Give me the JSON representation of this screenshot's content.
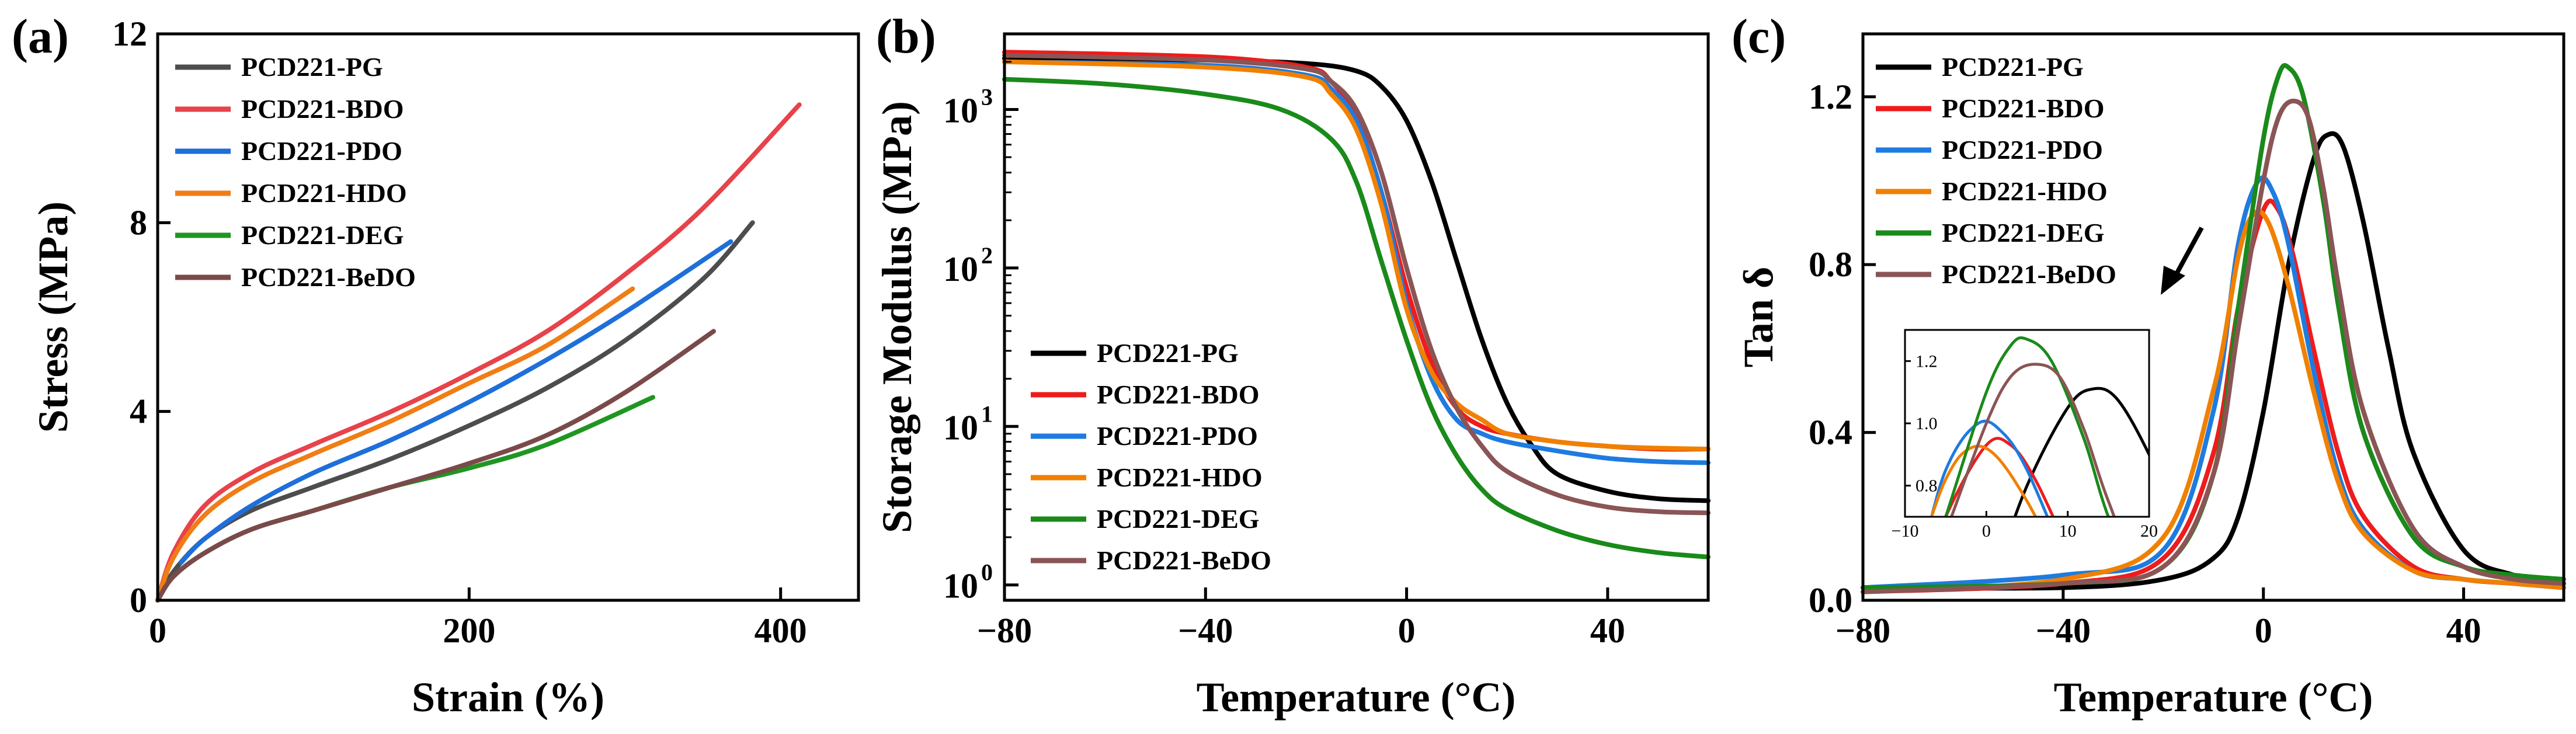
{
  "colors": {
    "PG": "#4d4d4d",
    "BDO": "#e8424a",
    "PDO": "#1e6fd9",
    "HDO": "#f07d15",
    "DEG": "#1f9622",
    "BeDO": "#7a4a4a",
    "PGc": "#000000",
    "BDOc": "#ee1c1c",
    "PDOc": "#1e7be0",
    "HDOc": "#f08000",
    "DEGc": "#1a8a1a",
    "BeDOc": "#8a5555"
  },
  "chart_data": [
    {
      "panel": "(a)",
      "type": "line",
      "xlabel": "Strain (%)",
      "ylabel": "Stress (MPa)",
      "xlim": [
        0,
        450
      ],
      "ylim": [
        0,
        12
      ],
      "xticks": [
        "0",
        "200",
        "400"
      ],
      "yticks": [
        "0",
        "4",
        "8",
        "12"
      ],
      "legend": [
        "PCD221-PG",
        "PCD221-BDO",
        "PCD221-PDO",
        "PCD221-HDO",
        "PCD221-DEG",
        "PCD221-BeDO"
      ],
      "series": [
        {
          "name": "PCD221-PG",
          "color": "#4d4d4d",
          "x": [
            0,
            10,
            30,
            60,
            100,
            150,
            200,
            250,
            300,
            350,
            382
          ],
          "y": [
            0,
            0.6,
            1.3,
            1.9,
            2.4,
            3.0,
            3.7,
            4.5,
            5.5,
            6.8,
            8.0
          ]
        },
        {
          "name": "PCD221-BDO",
          "color": "#e8424a",
          "x": [
            0,
            10,
            30,
            60,
            100,
            150,
            200,
            250,
            300,
            350,
            412
          ],
          "y": [
            0,
            1.0,
            2.0,
            2.7,
            3.3,
            4.0,
            4.8,
            5.7,
            6.9,
            8.3,
            10.5
          ]
        },
        {
          "name": "PCD221-PDO",
          "color": "#1e6fd9",
          "x": [
            15,
            30,
            60,
            100,
            150,
            200,
            250,
            300,
            368
          ],
          "y": [
            0.8,
            1.3,
            2.0,
            2.7,
            3.4,
            4.2,
            5.1,
            6.1,
            7.6
          ]
        },
        {
          "name": "PCD221-HDO",
          "color": "#f07d15",
          "x": [
            0,
            10,
            30,
            60,
            100,
            150,
            200,
            250,
            305
          ],
          "y": [
            0,
            0.9,
            1.8,
            2.5,
            3.1,
            3.8,
            4.6,
            5.4,
            6.6
          ]
        },
        {
          "name": "PCD221-DEG",
          "color": "#1f9622",
          "x": [
            0,
            10,
            30,
            60,
            100,
            150,
            200,
            250,
            318
          ],
          "y": [
            0,
            0.5,
            1.0,
            1.5,
            1.9,
            2.4,
            2.8,
            3.3,
            4.3
          ]
        },
        {
          "name": "PCD221-BeDO",
          "color": "#7a4a4a",
          "x": [
            0,
            10,
            30,
            60,
            100,
            150,
            200,
            250,
            300,
            357
          ],
          "y": [
            0,
            0.5,
            1.0,
            1.5,
            1.9,
            2.4,
            2.9,
            3.5,
            4.4,
            5.7
          ]
        }
      ]
    },
    {
      "panel": "(b)",
      "type": "line",
      "yscale": "log",
      "xlabel": "Temperature (°C)",
      "ylabel": "Storage Modulus (MPa)",
      "xlim": [
        -80,
        60
      ],
      "ylim": [
        0.8,
        3000
      ],
      "xticks": [
        "−80",
        "−40",
        "0",
        "40"
      ],
      "yticks": [
        "10",
        "10",
        "10",
        "10"
      ],
      "ytick_exponents": [
        "0",
        "1",
        "2",
        "3"
      ],
      "legend": [
        "PCD221-PG",
        "PCD221-BDO",
        "PCD221-PDO",
        "PCD221-HDO",
        "PCD221-DEG",
        "PCD221-BeDO"
      ],
      "series": [
        {
          "name": "PCD221-PG",
          "color": "#000000",
          "x": [
            -80,
            -40,
            -20,
            -10,
            -5,
            0,
            5,
            10,
            15,
            20,
            25,
            30,
            40,
            50,
            60
          ],
          "y": [
            2100,
            2050,
            1950,
            1750,
            1400,
            850,
            350,
            110,
            35,
            14,
            7.5,
            5.0,
            3.9,
            3.5,
            3.4
          ]
        },
        {
          "name": "PCD221-BDO",
          "color": "#ee1c1c",
          "x": [
            -80,
            -40,
            -20,
            -15,
            -10,
            -5,
            0,
            5,
            10,
            15,
            20,
            30,
            40,
            50,
            60
          ],
          "y": [
            2300,
            2150,
            1850,
            1500,
            900,
            300,
            75,
            25,
            13,
            10,
            9,
            8,
            7.5,
            7.2,
            7.2
          ]
        },
        {
          "name": "PCD221-PDO",
          "color": "#1e7be0",
          "x": [
            -80,
            -40,
            -20,
            -15,
            -10,
            -5,
            0,
            5,
            10,
            15,
            20,
            30,
            40,
            50,
            60
          ],
          "y": [
            2000,
            1900,
            1650,
            1350,
            850,
            300,
            60,
            20,
            11,
            9,
            8,
            7,
            6.3,
            6.0,
            5.9
          ]
        },
        {
          "name": "PCD221-HDO",
          "color": "#f08000",
          "x": [
            -80,
            -40,
            -20,
            -15,
            -10,
            -5,
            0,
            5,
            10,
            15,
            20,
            30,
            40,
            50,
            60
          ],
          "y": [
            2000,
            1850,
            1600,
            1250,
            750,
            250,
            55,
            22,
            14,
            11,
            9,
            8,
            7.5,
            7.3,
            7.2
          ]
        },
        {
          "name": "PCD221-DEG",
          "color": "#1a8a1a",
          "x": [
            -80,
            -60,
            -40,
            -25,
            -15,
            -10,
            -5,
            0,
            5,
            10,
            15,
            20,
            30,
            40,
            50,
            60
          ],
          "y": [
            1550,
            1450,
            1250,
            1000,
            650,
            350,
            110,
            35,
            13,
            6.5,
            4.0,
            3.0,
            2.2,
            1.8,
            1.6,
            1.5
          ]
        },
        {
          "name": "PCD221-BeDO",
          "color": "#8a5555",
          "x": [
            -80,
            -40,
            -20,
            -15,
            -10,
            -5,
            0,
            5,
            10,
            15,
            20,
            30,
            40,
            50,
            60
          ],
          "y": [
            2200,
            2050,
            1800,
            1500,
            1000,
            400,
            100,
            30,
            13,
            7.5,
            5.2,
            3.7,
            3.1,
            2.9,
            2.85
          ]
        }
      ]
    },
    {
      "panel": "(c)",
      "type": "line",
      "xlabel": "Temperature (°C)",
      "ylabel": "Tan δ",
      "xlim": [
        -80,
        60
      ],
      "ylim": [
        0,
        1.35
      ],
      "xticks": [
        "−80",
        "−40",
        "0",
        "40"
      ],
      "yticks": [
        "0.0",
        "0.4",
        "0.8",
        "1.2"
      ],
      "legend": [
        "PCD221-PG",
        "PCD221-BDO",
        "PCD221-PDO",
        "PCD221-HDO",
        "PCD221-DEG",
        "PCD221-BeDO"
      ],
      "series": [
        {
          "name": "PCD221-PG",
          "color": "#000000",
          "x": [
            -80,
            -40,
            -20,
            -10,
            -5,
            0,
            5,
            10,
            13,
            16,
            20,
            25,
            30,
            40,
            50,
            60
          ],
          "y": [
            0.03,
            0.03,
            0.05,
            0.1,
            0.2,
            0.45,
            0.8,
            1.05,
            1.11,
            1.08,
            0.9,
            0.6,
            0.35,
            0.12,
            0.06,
            0.04
          ]
        },
        {
          "name": "PCD221-BDO",
          "color": "#ee1c1c",
          "x": [
            -80,
            -40,
            -20,
            -10,
            -5,
            0,
            3,
            6,
            10,
            15,
            20,
            30,
            40,
            50,
            60
          ],
          "y": [
            0.02,
            0.04,
            0.1,
            0.35,
            0.7,
            0.93,
            0.93,
            0.82,
            0.6,
            0.35,
            0.2,
            0.08,
            0.05,
            0.04,
            0.03
          ]
        },
        {
          "name": "PCD221-PDO",
          "color": "#1e7be0",
          "x": [
            -80,
            -40,
            -20,
            -10,
            -5,
            -1,
            2,
            5,
            10,
            15,
            20,
            30,
            40,
            50,
            60
          ],
          "y": [
            0.03,
            0.06,
            0.12,
            0.45,
            0.85,
            1.0,
            0.97,
            0.85,
            0.55,
            0.3,
            0.17,
            0.07,
            0.05,
            0.04,
            0.03
          ]
        },
        {
          "name": "PCD221-HDO",
          "color": "#f08000",
          "x": [
            -80,
            -40,
            -20,
            -10,
            -5,
            -2,
            1,
            5,
            10,
            15,
            20,
            30,
            40,
            50,
            60
          ],
          "y": [
            0.02,
            0.05,
            0.15,
            0.5,
            0.82,
            0.92,
            0.9,
            0.75,
            0.5,
            0.28,
            0.16,
            0.07,
            0.05,
            0.04,
            0.03
          ]
        },
        {
          "name": "PCD221-DEG",
          "color": "#1a8a1a",
          "x": [
            -80,
            -40,
            -20,
            -10,
            -5,
            0,
            3,
            5,
            8,
            12,
            15,
            20,
            30,
            40,
            50,
            60
          ],
          "y": [
            0.03,
            0.04,
            0.08,
            0.3,
            0.7,
            1.1,
            1.25,
            1.27,
            1.2,
            0.95,
            0.7,
            0.4,
            0.15,
            0.08,
            0.06,
            0.05
          ]
        },
        {
          "name": "PCD221-BeDO",
          "color": "#8a5555",
          "x": [
            -80,
            -40,
            -20,
            -10,
            -5,
            0,
            3,
            6,
            9,
            12,
            15,
            20,
            30,
            40,
            50,
            60
          ],
          "y": [
            0.02,
            0.04,
            0.08,
            0.3,
            0.65,
            1.0,
            1.15,
            1.19,
            1.15,
            0.98,
            0.75,
            0.45,
            0.17,
            0.08,
            0.05,
            0.04
          ]
        }
      ],
      "inset": {
        "xlim": [
          -10,
          20
        ],
        "ylim": [
          0.7,
          1.3
        ],
        "xticks": [
          "−10",
          "0",
          "10",
          "20"
        ],
        "yticks": [
          "0.8",
          "1.0",
          "1.2"
        ]
      }
    }
  ]
}
